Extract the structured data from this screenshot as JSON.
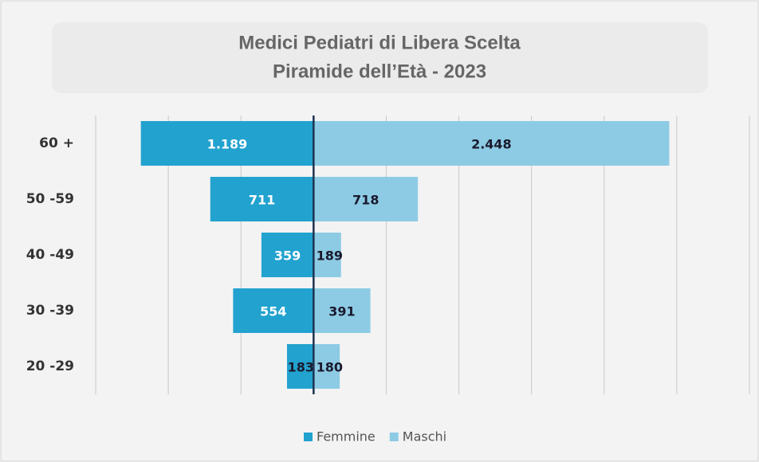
{
  "chart_data": {
    "type": "pyramid",
    "title": "Medici Pediatri di Libera Scelta",
    "subtitle": "Piramide dell’Età - 2023",
    "categories": [
      "60 +",
      "50 -59",
      "40 -49",
      "30 -39",
      "20 -29"
    ],
    "series": [
      {
        "name": "Femmine",
        "color": "#22a2cf",
        "side": "left",
        "values": [
          1189,
          711,
          359,
          554,
          183
        ],
        "value_labels": [
          "1.189",
          "711",
          "359",
          "554",
          "183"
        ]
      },
      {
        "name": "Maschi",
        "color": "#8dcbe4",
        "side": "right",
        "values": [
          2448,
          718,
          189,
          391,
          180
        ],
        "value_labels": [
          "2.448",
          "718",
          "189",
          "391",
          "180"
        ]
      }
    ],
    "xlim": [
      -1500,
      3000
    ],
    "xticks": [
      -1500,
      -1000,
      -500,
      0,
      500,
      1000,
      1500,
      2000,
      2500,
      3000
    ],
    "grid": true,
    "legend": "bottom"
  }
}
